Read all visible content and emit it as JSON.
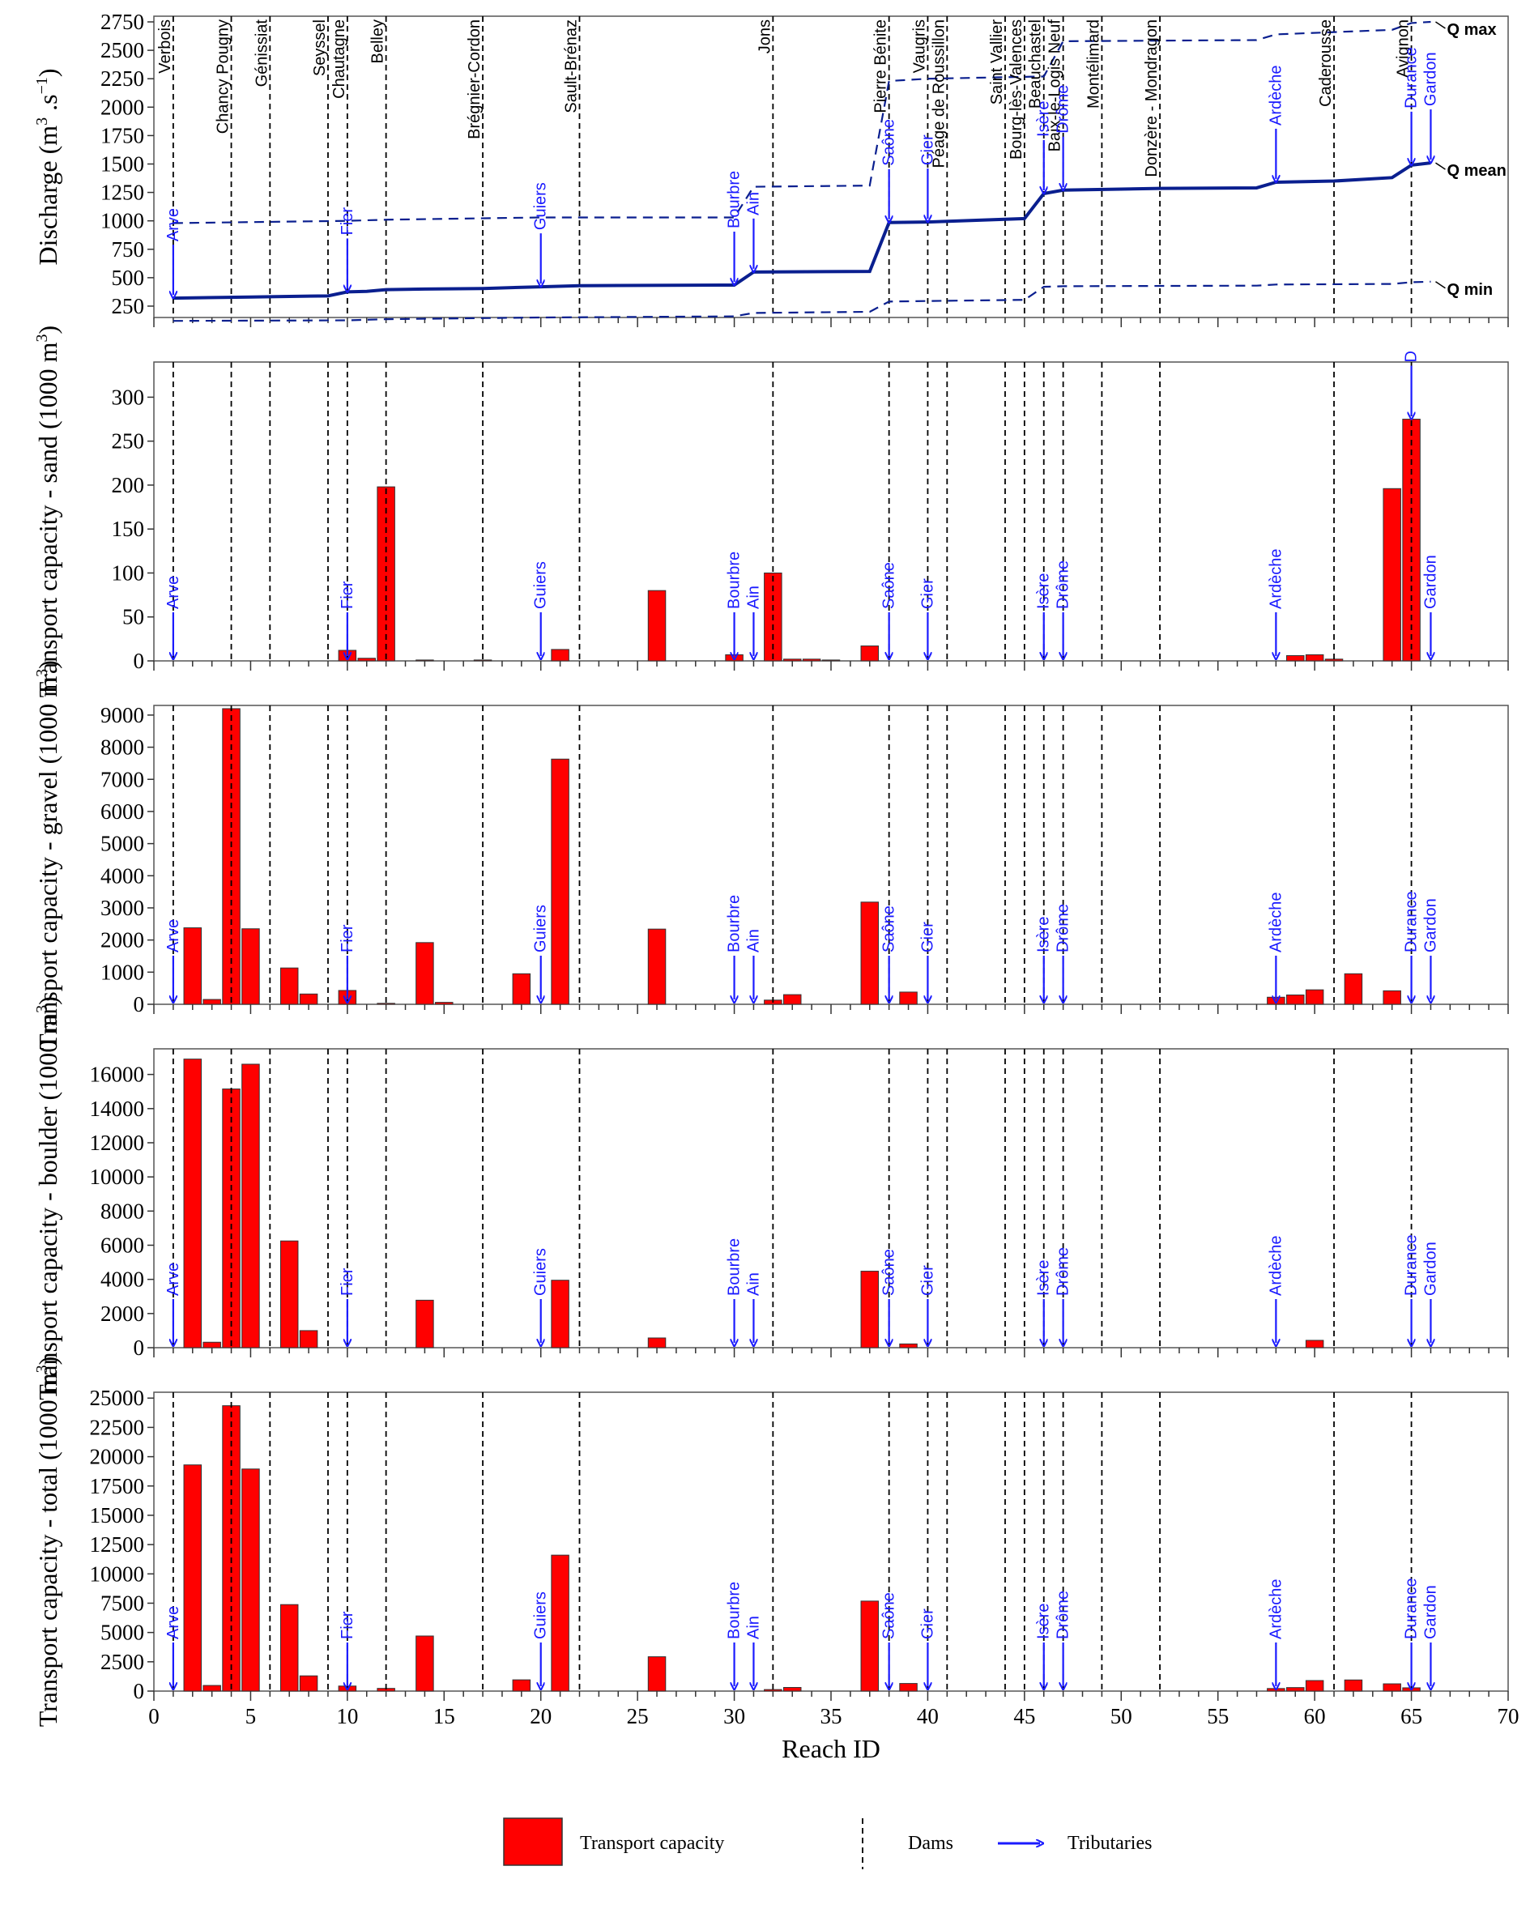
{
  "chart_data": {
    "type": "bar",
    "xlabel": "Reach ID",
    "xlim": [
      0,
      70
    ],
    "xticks": [
      0,
      5,
      10,
      15,
      20,
      25,
      30,
      35,
      40,
      45,
      50,
      55,
      60,
      65,
      70
    ],
    "colors": {
      "bars": "#ff0000",
      "bar_edge": "#333333",
      "tributary": "#1a1aff",
      "discharge": "#0a1f8f"
    },
    "dams": [
      {
        "x": 1,
        "name": "Verbois"
      },
      {
        "x": 4,
        "name": "Chancy Pougny"
      },
      {
        "x": 6,
        "name": "Génissiat"
      },
      {
        "x": 9,
        "name": "Seyssel"
      },
      {
        "x": 10,
        "name": "Chautagne"
      },
      {
        "x": 12,
        "name": "Belley"
      },
      {
        "x": 17,
        "name": "Brégnier-Cordon"
      },
      {
        "x": 22,
        "name": "Sault-Brénaz"
      },
      {
        "x": 32,
        "name": "Jons"
      },
      {
        "x": 38,
        "name": "Pierre Bénite"
      },
      {
        "x": 40,
        "name": "Vaugris"
      },
      {
        "x": 41,
        "name": "Péage de Roussillon"
      },
      {
        "x": 44,
        "name": "Saint Vallier"
      },
      {
        "x": 45,
        "name": "Bourg-lès-Valences"
      },
      {
        "x": 46,
        "name": "Beauchastel"
      },
      {
        "x": 47,
        "name": "Baix-le-Logis Neuf"
      },
      {
        "x": 49,
        "name": "Montélimard"
      },
      {
        "x": 52,
        "name": "Donzère - Mondragon"
      },
      {
        "x": 61,
        "name": "Caderousse"
      },
      {
        "x": 65,
        "name": "Avignon"
      }
    ],
    "tributaries": [
      {
        "x": 1,
        "name": "Arve"
      },
      {
        "x": 10,
        "name": "Fier"
      },
      {
        "x": 20,
        "name": "Guiers"
      },
      {
        "x": 30,
        "name": "Bourbre"
      },
      {
        "x": 31,
        "name": "Ain"
      },
      {
        "x": 38,
        "name": "Saône"
      },
      {
        "x": 40,
        "name": "Gier"
      },
      {
        "x": 46,
        "name": "Isère"
      },
      {
        "x": 47,
        "name": "Drôme"
      },
      {
        "x": 58,
        "name": "Ardèche"
      },
      {
        "x": 65,
        "name": "Durance"
      },
      {
        "x": 66,
        "name": "Gardon"
      }
    ],
    "panels": [
      {
        "type": "line",
        "ylabel_main": "Discharge (m",
        "ylabel_sup1": "3",
        "ylabel_mid": " .s",
        "ylabel_sup2": "−1",
        "ylabel_end": ")",
        "ylim": [
          150,
          2800
        ],
        "yticks": [
          250,
          500,
          750,
          1000,
          1250,
          1500,
          1750,
          2000,
          2250,
          2500,
          2750
        ],
        "series": [
          {
            "name": "Q max",
            "style": "dashed",
            "points": [
              [
                1,
                980
              ],
              [
                10,
                1000
              ],
              [
                12,
                1010
              ],
              [
                20,
                1030
              ],
              [
                30,
                1030
              ],
              [
                31,
                1300
              ],
              [
                37,
                1310
              ],
              [
                38,
                2230
              ],
              [
                40,
                2250
              ],
              [
                46,
                2270
              ],
              [
                47,
                2580
              ],
              [
                57,
                2590
              ],
              [
                58,
                2640
              ],
              [
                64,
                2680
              ],
              [
                65,
                2740
              ],
              [
                66,
                2750
              ]
            ]
          },
          {
            "name": "Q mean",
            "style": "solid",
            "points": [
              [
                1,
                320
              ],
              [
                5,
                330
              ],
              [
                7,
                335
              ],
              [
                9,
                340
              ],
              [
                10,
                375
              ],
              [
                11,
                380
              ],
              [
                12,
                395
              ],
              [
                14,
                400
              ],
              [
                17,
                405
              ],
              [
                20,
                420
              ],
              [
                22,
                430
              ],
              [
                30,
                435
              ],
              [
                31,
                550
              ],
              [
                37,
                555
              ],
              [
                38,
                985
              ],
              [
                40,
                990
              ],
              [
                45,
                1020
              ],
              [
                46,
                1240
              ],
              [
                47,
                1270
              ],
              [
                52,
                1285
              ],
              [
                57,
                1290
              ],
              [
                58,
                1340
              ],
              [
                61,
                1350
              ],
              [
                64,
                1380
              ],
              [
                65,
                1490
              ],
              [
                66,
                1510
              ]
            ]
          },
          {
            "name": "Q min",
            "style": "dashed",
            "points": [
              [
                1,
                120
              ],
              [
                10,
                125
              ],
              [
                12,
                135
              ],
              [
                20,
                150
              ],
              [
                30,
                160
              ],
              [
                31,
                190
              ],
              [
                37,
                200
              ],
              [
                38,
                290
              ],
              [
                40,
                295
              ],
              [
                45,
                305
              ],
              [
                46,
                420
              ],
              [
                47,
                425
              ],
              [
                57,
                430
              ],
              [
                58,
                440
              ],
              [
                64,
                445
              ],
              [
                65,
                460
              ],
              [
                66,
                465
              ]
            ]
          }
        ]
      },
      {
        "type": "bar",
        "ylabel": "Transport capacity - sand (1000 m",
        "ylabel_sup": "3",
        "ylabel_end": ")",
        "ylim": [
          0,
          340
        ],
        "yticks": [
          0,
          50,
          100,
          150,
          200,
          250,
          300
        ],
        "bars": [
          [
            10,
            12
          ],
          [
            11,
            3
          ],
          [
            12,
            198
          ],
          [
            14,
            1
          ],
          [
            17,
            1
          ],
          [
            21,
            13
          ],
          [
            26,
            80
          ],
          [
            30,
            7
          ],
          [
            32,
            100
          ],
          [
            33,
            2
          ],
          [
            34,
            2
          ],
          [
            35,
            1
          ],
          [
            37,
            17
          ],
          [
            59,
            6
          ],
          [
            60,
            7
          ],
          [
            61,
            2
          ],
          [
            64,
            196
          ],
          [
            65,
            275
          ]
        ]
      },
      {
        "type": "bar",
        "ylabel": "Transport capacity - gravel (1000 m",
        "ylabel_sup": "3",
        "ylabel_end": ")",
        "ylim": [
          0,
          9300
        ],
        "yticks": [
          0,
          1000,
          2000,
          3000,
          4000,
          5000,
          6000,
          7000,
          8000,
          9000
        ],
        "bars": [
          [
            2,
            2380
          ],
          [
            3,
            150
          ],
          [
            4,
            9200
          ],
          [
            5,
            2350
          ],
          [
            7,
            1130
          ],
          [
            8,
            320
          ],
          [
            10,
            430
          ],
          [
            12,
            30
          ],
          [
            14,
            1920
          ],
          [
            15,
            60
          ],
          [
            19,
            950
          ],
          [
            21,
            7630
          ],
          [
            26,
            2340
          ],
          [
            32,
            130
          ],
          [
            33,
            300
          ],
          [
            37,
            3180
          ],
          [
            39,
            380
          ],
          [
            58,
            220
          ],
          [
            59,
            290
          ],
          [
            60,
            450
          ],
          [
            62,
            950
          ],
          [
            64,
            420
          ]
        ]
      },
      {
        "type": "bar",
        "ylabel": "Transport capacity - boulder (1000 m",
        "ylabel_sup": "3",
        "ylabel_end": ")",
        "ylim": [
          0,
          17500
        ],
        "yticks": [
          0,
          2000,
          4000,
          6000,
          8000,
          10000,
          12000,
          14000,
          16000
        ],
        "bars": [
          [
            2,
            16900
          ],
          [
            3,
            320
          ],
          [
            4,
            15150
          ],
          [
            5,
            16600
          ],
          [
            7,
            6250
          ],
          [
            8,
            1000
          ],
          [
            14,
            2780
          ],
          [
            21,
            3950
          ],
          [
            26,
            570
          ],
          [
            37,
            4480
          ],
          [
            39,
            220
          ],
          [
            60,
            430
          ]
        ]
      },
      {
        "type": "bar",
        "ylabel": "Transport capacity - total (1000 m",
        "ylabel_sup": "3",
        "ylabel_end": ")",
        "ylim": [
          0,
          25500
        ],
        "yticks": [
          0,
          2500,
          5000,
          7500,
          10000,
          12500,
          15000,
          17500,
          20000,
          22500,
          25000
        ],
        "bars": [
          [
            2,
            19300
          ],
          [
            3,
            480
          ],
          [
            4,
            24350
          ],
          [
            5,
            18950
          ],
          [
            7,
            7380
          ],
          [
            8,
            1300
          ],
          [
            10,
            430
          ],
          [
            12,
            230
          ],
          [
            14,
            4700
          ],
          [
            19,
            960
          ],
          [
            21,
            11600
          ],
          [
            26,
            2930
          ],
          [
            32,
            130
          ],
          [
            33,
            310
          ],
          [
            37,
            7680
          ],
          [
            39,
            650
          ],
          [
            58,
            220
          ],
          [
            59,
            300
          ],
          [
            60,
            900
          ],
          [
            62,
            950
          ],
          [
            64,
            620
          ],
          [
            65,
            280
          ]
        ]
      }
    ],
    "legend": [
      {
        "label": "Transport capacity",
        "kind": "bar"
      },
      {
        "label": "Dams",
        "kind": "dashed-line"
      },
      {
        "label": "Tributaries",
        "kind": "arrow"
      }
    ]
  }
}
